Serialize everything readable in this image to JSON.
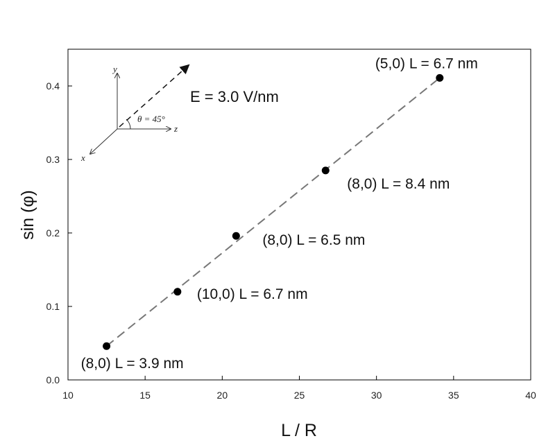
{
  "chart_data": {
    "type": "scatter",
    "xlabel": "L / R",
    "ylabel": "sin (φ)",
    "xlim": [
      10,
      40
    ],
    "ylim": [
      0.0,
      0.45
    ],
    "xticks": [
      "10",
      "15",
      "20",
      "25",
      "30",
      "35",
      "40"
    ],
    "yticks": [
      "0.0",
      "0.1",
      "0.2",
      "0.3",
      "0.4"
    ],
    "grid": false,
    "points": [
      {
        "x": 12.5,
        "y": 0.046,
        "label": "(8,0) L = 3.9 nm"
      },
      {
        "x": 17.1,
        "y": 0.12,
        "label": "(10,0) L = 6.7 nm"
      },
      {
        "x": 20.9,
        "y": 0.196,
        "label": "(8,0) L = 6.5 nm"
      },
      {
        "x": 26.7,
        "y": 0.285,
        "label": "(8,0) L = 8.4 nm"
      },
      {
        "x": 34.1,
        "y": 0.411,
        "label": "(5,0) L = 6.7 nm"
      }
    ],
    "fit_line": {
      "x": [
        12.5,
        34.1
      ],
      "y": [
        0.046,
        0.411
      ],
      "style": "dashed"
    },
    "inset": {
      "field_label": "E = 3.0 V/nm",
      "axis_labels": {
        "y": "y",
        "z": "z",
        "x": "x"
      },
      "angle_label": "θ = 45°"
    }
  }
}
